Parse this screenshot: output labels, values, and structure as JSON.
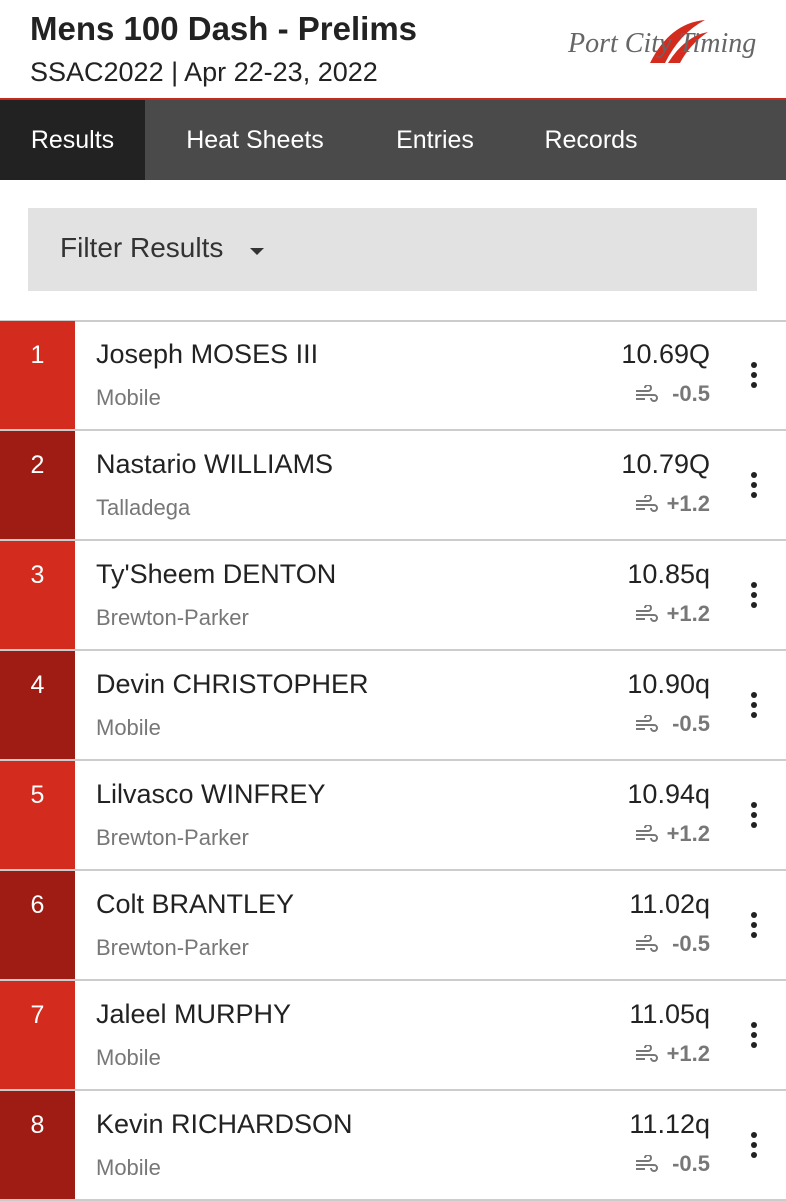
{
  "header": {
    "title": "Mens 100 Dash - Prelims",
    "subtitle": "SSAC2022 | Apr 22-23, 2022",
    "logo": "Port City Timing"
  },
  "nav": {
    "tabs": [
      "Results",
      "Heat Sheets",
      "Entries",
      "Records"
    ],
    "active": 0
  },
  "filter": {
    "label": "Filter Results"
  },
  "results": {
    "rows": [
      {
        "place": 1,
        "name": "Joseph MOSES III",
        "team": "Mobile",
        "mark": "10.69Q",
        "wind": "-0.5"
      },
      {
        "place": 2,
        "name": "Nastario WILLIAMS",
        "team": "Talladega",
        "mark": "10.79Q",
        "wind": "+1.2"
      },
      {
        "place": 3,
        "name": "Ty'Sheem DENTON",
        "team": "Brewton-Parker",
        "mark": "10.85q",
        "wind": "+1.2"
      },
      {
        "place": 4,
        "name": "Devin CHRISTOPHER",
        "team": "Mobile",
        "mark": "10.90q",
        "wind": "-0.5"
      },
      {
        "place": 5,
        "name": "Lilvasco WINFREY",
        "team": "Brewton-Parker",
        "mark": "10.94q",
        "wind": "+1.2"
      },
      {
        "place": 6,
        "name": "Colt BRANTLEY",
        "team": "Brewton-Parker",
        "mark": "11.02q",
        "wind": "-0.5"
      },
      {
        "place": 7,
        "name": "Jaleel MURPHY",
        "team": "Mobile",
        "mark": "11.05q",
        "wind": "+1.2"
      },
      {
        "place": 8,
        "name": "Kevin RICHARDSON",
        "team": "Mobile",
        "mark": "11.12q",
        "wind": "-0.5"
      }
    ]
  }
}
